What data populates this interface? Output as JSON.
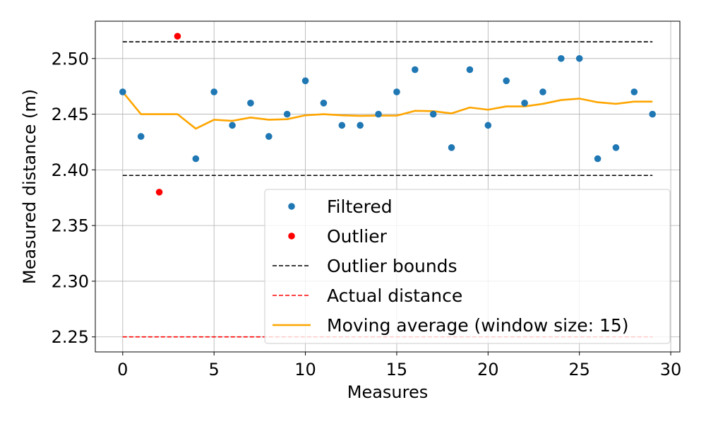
{
  "chart_data": {
    "type": "scatter",
    "title": "",
    "xlabel": "Measures",
    "ylabel": "Measured distance (m)",
    "xlim": [
      -1.5,
      30.5
    ],
    "ylim": [
      2.2365,
      2.5335
    ],
    "x_ticks": [
      0,
      5,
      10,
      15,
      20,
      25,
      30
    ],
    "x_tick_labels": [
      "0",
      "5",
      "10",
      "15",
      "20",
      "25",
      "30"
    ],
    "y_ticks": [
      2.25,
      2.3,
      2.35,
      2.4,
      2.45,
      2.5
    ],
    "y_tick_labels": [
      "2.25",
      "2.30",
      "2.35",
      "2.40",
      "2.45",
      "2.50"
    ],
    "grid": true,
    "legend_position": "lower-right",
    "series": [
      {
        "name": "Filtered",
        "kind": "scatter",
        "color": "#1f77b4",
        "points": [
          [
            0,
            2.47
          ],
          [
            1,
            2.43
          ],
          [
            4,
            2.41
          ],
          [
            5,
            2.47
          ],
          [
            6,
            2.44
          ],
          [
            7,
            2.46
          ],
          [
            8,
            2.43
          ],
          [
            9,
            2.45
          ],
          [
            10,
            2.48
          ],
          [
            11,
            2.46
          ],
          [
            12,
            2.44
          ],
          [
            13,
            2.44
          ],
          [
            14,
            2.45
          ],
          [
            15,
            2.47
          ],
          [
            16,
            2.49
          ],
          [
            17,
            2.45
          ],
          [
            18,
            2.42
          ],
          [
            19,
            2.49
          ],
          [
            20,
            2.44
          ],
          [
            21,
            2.48
          ],
          [
            22,
            2.46
          ],
          [
            23,
            2.47
          ],
          [
            24,
            2.5
          ],
          [
            25,
            2.5
          ],
          [
            26,
            2.41
          ],
          [
            27,
            2.42
          ],
          [
            28,
            2.47
          ],
          [
            29,
            2.45
          ]
        ]
      },
      {
        "name": "Outlier",
        "kind": "scatter",
        "color": "#ff0000",
        "points": [
          [
            2,
            2.38
          ],
          [
            3,
            2.52
          ]
        ]
      },
      {
        "name": "Outlier bounds",
        "kind": "dashed-line",
        "color": "#000000",
        "lines": [
          [
            [
              0,
              2.515
            ],
            [
              29,
              2.515
            ]
          ],
          [
            [
              0,
              2.395
            ],
            [
              29,
              2.395
            ]
          ]
        ]
      },
      {
        "name": "Actual distance",
        "kind": "dashed-line",
        "color": "#ff0000",
        "lines": [
          [
            [
              0,
              2.25
            ],
            [
              29,
              2.25
            ]
          ]
        ]
      },
      {
        "name": "Moving average (window size: 15)",
        "kind": "line",
        "color": "#ffa500",
        "points": [
          [
            0,
            2.47
          ],
          [
            1,
            2.45
          ],
          [
            2,
            2.45
          ],
          [
            3,
            2.45
          ],
          [
            4,
            2.437
          ],
          [
            5,
            2.445
          ],
          [
            6,
            2.444
          ],
          [
            7,
            2.447
          ],
          [
            8,
            2.445
          ],
          [
            9,
            2.4455
          ],
          [
            10,
            2.449
          ],
          [
            11,
            2.45
          ],
          [
            12,
            2.449
          ],
          [
            13,
            2.4485
          ],
          [
            14,
            2.4487
          ],
          [
            15,
            2.4487
          ],
          [
            16,
            2.453
          ],
          [
            17,
            2.4527
          ],
          [
            18,
            2.4507
          ],
          [
            19,
            2.456
          ],
          [
            20,
            2.454
          ],
          [
            21,
            2.457
          ],
          [
            22,
            2.457
          ],
          [
            23,
            2.4593
          ],
          [
            24,
            2.4627
          ],
          [
            25,
            2.464
          ],
          [
            26,
            2.4607
          ],
          [
            27,
            2.4593
          ],
          [
            28,
            2.4613
          ],
          [
            29,
            2.4613
          ]
        ]
      }
    ]
  }
}
